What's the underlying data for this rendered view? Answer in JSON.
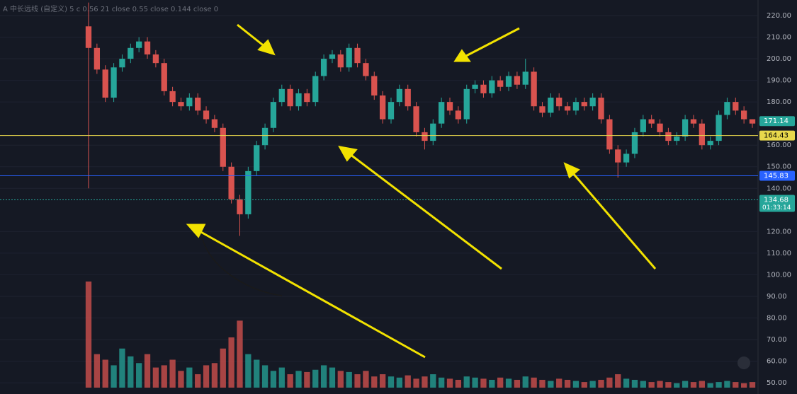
{
  "chart_data": {
    "type": "candlestick",
    "legend_text": "A 中长远线 (自定义) 5 c 0.56 21 close 0.55 close 0.144 close 0",
    "ylim": [
      44.8,
      227.2
    ],
    "yticks": [
      {
        "value": 220,
        "label": "220.00"
      },
      {
        "value": 210,
        "label": "210.00"
      },
      {
        "value": 200,
        "label": "200.00"
      },
      {
        "value": 190,
        "label": "190.00"
      },
      {
        "value": 180,
        "label": "180.00"
      },
      {
        "value": 160,
        "label": "160.00"
      },
      {
        "value": 150,
        "label": "150.00"
      },
      {
        "value": 140,
        "label": "140.00"
      },
      {
        "value": 120,
        "label": "120.00"
      },
      {
        "value": 110,
        "label": "110.00"
      },
      {
        "value": 100,
        "label": "100.00"
      },
      {
        "value": 90,
        "label": "90.00"
      },
      {
        "value": 80,
        "label": "80.00"
      },
      {
        "value": 70,
        "label": "70.00"
      },
      {
        "value": 60,
        "label": "60.00"
      },
      {
        "value": 50,
        "label": "50.00"
      }
    ],
    "grid": true,
    "up_color": "#26a69a",
    "down_color": "#d9534f",
    "open": [
      215,
      205,
      195,
      182,
      196,
      200,
      205,
      208,
      202,
      198,
      185,
      180,
      178,
      182,
      176,
      172,
      168,
      150,
      135,
      128,
      148,
      160,
      168,
      180,
      186,
      178,
      184,
      180,
      192,
      200,
      202,
      196,
      205,
      198,
      192,
      183,
      172,
      180,
      186,
      178,
      166,
      162,
      170,
      180,
      176,
      172,
      186,
      188,
      184,
      190,
      187,
      192,
      188,
      194,
      178,
      175,
      182,
      178,
      176,
      180,
      178,
      182,
      172,
      158,
      152,
      156,
      166,
      172,
      170,
      166,
      162,
      164,
      172,
      170,
      160,
      162,
      174,
      180,
      176,
      172
    ],
    "high": [
      226,
      207,
      197,
      198,
      202,
      207,
      210,
      210,
      204,
      200,
      187,
      182,
      184,
      184,
      178,
      174,
      170,
      152,
      137,
      150,
      162,
      170,
      182,
      188,
      188,
      186,
      186,
      194,
      202,
      204,
      204,
      207,
      207,
      200,
      194,
      185,
      182,
      188,
      188,
      180,
      168,
      172,
      182,
      182,
      178,
      188,
      190,
      190,
      192,
      192,
      194,
      194,
      200,
      196,
      180,
      184,
      184,
      180,
      182,
      182,
      184,
      184,
      174,
      160,
      158,
      168,
      174,
      174,
      172,
      168,
      166,
      174,
      174,
      172,
      164,
      176,
      182,
      182,
      178,
      172
    ],
    "low": [
      140,
      193,
      180,
      180,
      194,
      198,
      203,
      200,
      196,
      183,
      178,
      176,
      176,
      174,
      170,
      166,
      148,
      133,
      118,
      126,
      146,
      158,
      166,
      178,
      176,
      176,
      178,
      178,
      190,
      198,
      194,
      194,
      196,
      190,
      181,
      170,
      170,
      178,
      176,
      164,
      158,
      160,
      168,
      174,
      170,
      170,
      184,
      182,
      182,
      185,
      185,
      186,
      186,
      176,
      173,
      173,
      176,
      174,
      174,
      176,
      176,
      170,
      156,
      145,
      150,
      154,
      164,
      168,
      164,
      160,
      160,
      162,
      168,
      158,
      158,
      160,
      172,
      174,
      170,
      168
    ],
    "close": [
      205,
      195,
      182,
      196,
      200,
      205,
      208,
      202,
      198,
      185,
      180,
      178,
      182,
      176,
      172,
      168,
      150,
      135,
      128,
      148,
      160,
      168,
      180,
      186,
      178,
      184,
      180,
      192,
      200,
      202,
      196,
      205,
      198,
      192,
      183,
      172,
      180,
      186,
      178,
      166,
      162,
      170,
      180,
      176,
      172,
      186,
      188,
      184,
      190,
      187,
      192,
      188,
      194,
      178,
      175,
      182,
      178,
      176,
      180,
      178,
      182,
      172,
      158,
      152,
      156,
      166,
      172,
      170,
      166,
      162,
      164,
      172,
      170,
      160,
      162,
      174,
      180,
      176,
      172,
      170
    ],
    "volume": [
      95,
      30,
      25,
      20,
      35,
      28,
      22,
      30,
      18,
      20,
      25,
      15,
      18,
      12,
      20,
      22,
      35,
      45,
      60,
      30,
      25,
      20,
      15,
      18,
      12,
      15,
      14,
      16,
      20,
      18,
      15,
      14,
      12,
      15,
      10,
      12,
      10,
      9,
      11,
      8,
      10,
      12,
      9,
      8,
      7,
      10,
      9,
      8,
      7,
      9,
      8,
      7,
      10,
      9,
      7,
      6,
      8,
      7,
      6,
      5,
      6,
      7,
      9,
      12,
      8,
      7,
      6,
      5,
      6,
      5,
      4,
      6,
      5,
      6,
      4,
      5,
      6,
      5,
      4,
      5
    ],
    "price_lines": [
      {
        "value": 164.43,
        "color": "#e8d84c"
      },
      {
        "value": 145.83,
        "color": "#2962ff"
      },
      {
        "value": 134.68,
        "color": "#26a69a"
      }
    ],
    "price_labels": [
      {
        "value": 171.14,
        "color": "#26a69a"
      }
    ],
    "countdown": "01:33:14"
  }
}
